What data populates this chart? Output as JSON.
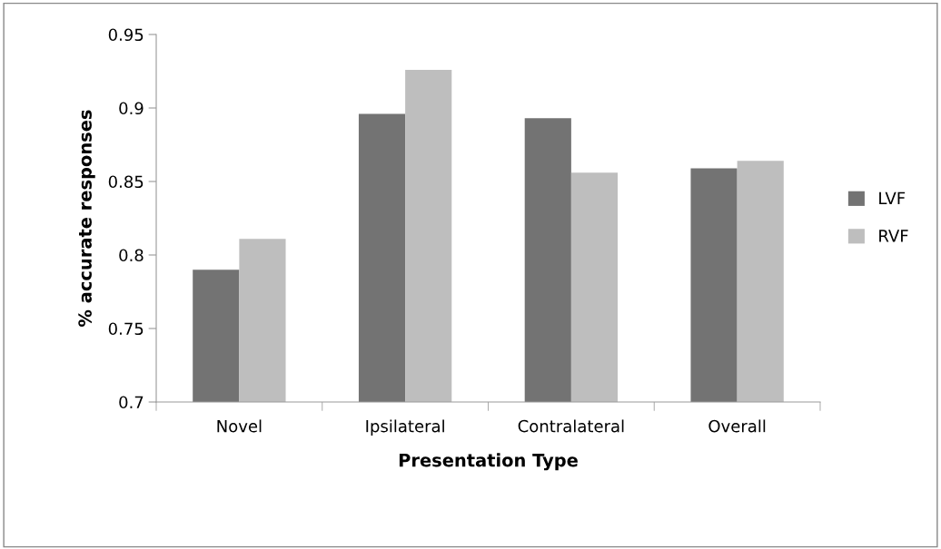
{
  "chart_data": {
    "type": "bar",
    "xlabel": "Presentation Type",
    "ylabel": "% accurate responses",
    "categories": [
      "Novel",
      "Ipsilateral",
      "Contralateral",
      "Overall"
    ],
    "series": [
      {
        "name": "LVF",
        "color": "#737373",
        "values": [
          0.79,
          0.896,
          0.893,
          0.859
        ]
      },
      {
        "name": "RVF",
        "color": "#bebebe",
        "values": [
          0.811,
          0.926,
          0.856,
          0.864
        ]
      }
    ],
    "ylim": [
      0.7,
      0.95
    ],
    "yticks": [
      0.7,
      0.75,
      0.8,
      0.85,
      0.9,
      0.95
    ],
    "grid": false,
    "legend": "right"
  }
}
